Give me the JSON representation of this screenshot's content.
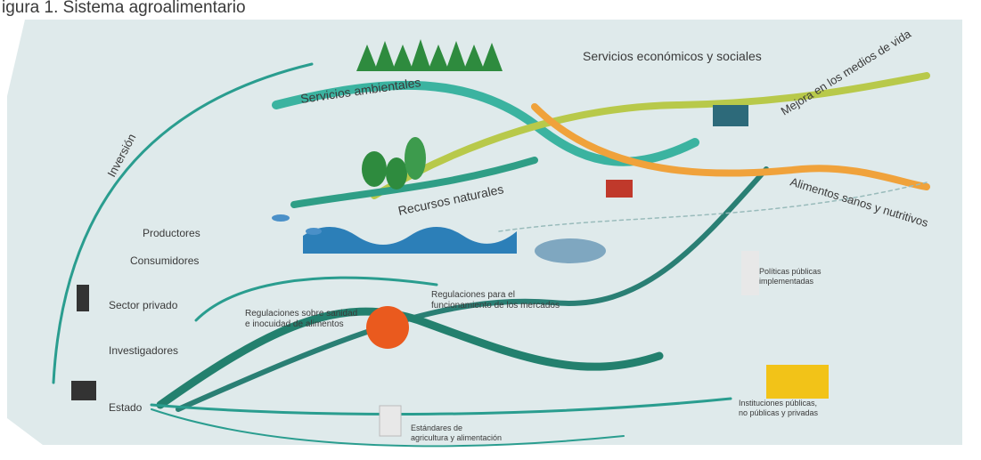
{
  "title": "igura 1. Sistema agroalimentario",
  "labels": [
    {
      "lines": [
        "Inversión"
      ]
    },
    {
      "lines": [
        "Productores"
      ]
    },
    {
      "lines": [
        "Consumidores"
      ]
    },
    {
      "lines": [
        "Sector privado"
      ]
    },
    {
      "lines": [
        "Investigadores"
      ]
    },
    {
      "lines": [
        "Estado"
      ]
    },
    {
      "lines": [
        "Servicios ambientales"
      ]
    },
    {
      "lines": [
        "Servicios económicos y sociales"
      ]
    },
    {
      "lines": [
        "Mejora en los medios de vida"
      ]
    },
    {
      "lines": [
        "Recursos naturales"
      ]
    },
    {
      "lines": [
        "Alimentos sanos y nutritivos"
      ]
    },
    {
      "lines": [
        "Regulaciones sobre sanidad",
        "e inocuidad de alimentos"
      ]
    },
    {
      "lines": [
        "Regulaciones para el",
        "funcionamiento de los mercados"
      ]
    },
    {
      "lines": [
        "Políticas públicas",
        "implementadas"
      ]
    },
    {
      "lines": [
        "Instituciones públicas,",
        "no públicas y privadas"
      ]
    },
    {
      "lines": [
        "Estándares de",
        "agricultura y alimentación"
      ]
    }
  ]
}
